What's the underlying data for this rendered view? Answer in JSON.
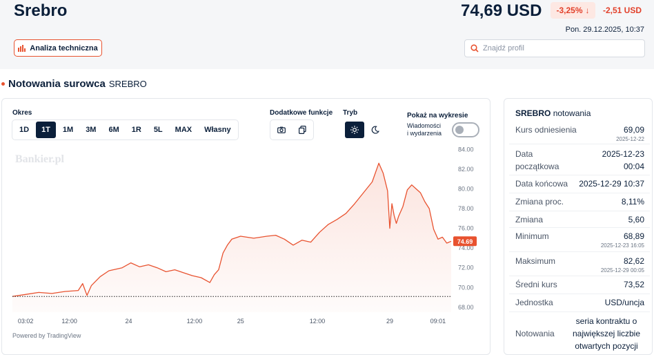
{
  "header": {
    "title": "Srebro",
    "price": "74,69 USD",
    "change_pct": "-3,25%",
    "change_abs": "-2,51 USD",
    "datetime": "Pon. 29.12.2025, 10:37",
    "ta_button": "Analiza techniczna",
    "search_placeholder": "Znajdź profil"
  },
  "section": {
    "title": "Notowania surowca",
    "subtitle": "SREBRO"
  },
  "controls": {
    "period_label": "Okres",
    "periods": [
      "1D",
      "1T",
      "1M",
      "3M",
      "6M",
      "1R",
      "5L",
      "MAX",
      "Własny"
    ],
    "active_period": "1T",
    "extra_label": "Dodatkowe funkcje",
    "mode_label": "Tryb",
    "show_label": "Pokaż na wykresie",
    "news_label_1": "Wiadomości",
    "news_label_2": "i wydarzenia"
  },
  "chart_data": {
    "type": "area",
    "watermark": "Bankier.pl",
    "powered_by": "Powered by TradingView",
    "x_tick_labels": [
      "03:02",
      "12:00",
      "24",
      "12:00",
      "25",
      "12:00",
      "29",
      "09:01"
    ],
    "y_tick_labels": [
      "84.00",
      "82.00",
      "80.00",
      "78.00",
      "76.00",
      "74.00",
      "72.00",
      "70.00",
      "68.00"
    ],
    "ylim": [
      67.5,
      84.3
    ],
    "reference_line": 69.09,
    "last_price_label": "74.69",
    "last_price": 74.69,
    "line_color": "#e8522f",
    "series": [
      {
        "x": [
          0,
          0.03,
          0.06,
          0.09,
          0.12,
          0.15,
          0.16,
          0.17,
          0.18,
          0.2,
          0.22,
          0.25,
          0.27,
          0.29,
          0.31,
          0.33,
          0.35,
          0.37,
          0.39,
          0.41,
          0.43,
          0.45,
          0.46,
          0.47,
          0.48,
          0.49,
          0.5,
          0.52,
          0.55,
          0.58,
          0.6,
          0.62,
          0.64,
          0.66,
          0.68,
          0.69,
          0.7,
          0.72,
          0.74,
          0.76,
          0.78,
          0.8,
          0.82,
          0.835,
          0.845,
          0.855,
          0.86,
          0.865,
          0.87,
          0.875,
          0.88,
          0.89,
          0.9,
          0.91,
          0.92,
          0.93,
          0.94,
          0.95,
          0.96,
          0.97,
          0.98,
          0.99,
          1.0
        ],
        "y": [
          69.1,
          69.3,
          69.5,
          69.4,
          69.6,
          69.7,
          70.4,
          69.2,
          70.2,
          71.1,
          71.7,
          72.0,
          72.5,
          72.1,
          72.3,
          72.0,
          71.6,
          71.8,
          71.5,
          71.2,
          71.0,
          70.5,
          71.3,
          71.8,
          73.5,
          74.3,
          74.9,
          75.2,
          75.0,
          75.2,
          75.3,
          74.9,
          74.3,
          74.8,
          74.6,
          75.1,
          75.6,
          76.4,
          76.9,
          77.5,
          78.5,
          79.6,
          80.7,
          82.6,
          81.6,
          79.8,
          76.0,
          78.5,
          77.3,
          76.5,
          77.2,
          78.2,
          79.9,
          80.4,
          80.0,
          79.6,
          78.7,
          78.0,
          75.9,
          74.9,
          75.1,
          74.5,
          74.69
        ]
      }
    ]
  },
  "stats": {
    "title_bold": "SREBRO",
    "title_rest": "notowania",
    "rows": [
      {
        "label": "Kurs odniesienia",
        "value": "69,09",
        "sub": "2025-12-22"
      },
      {
        "label": "Data",
        "label2": "początkowa",
        "value": "2025-12-23",
        "value2": "00:04"
      },
      {
        "label": "Data końcowa",
        "value": "2025-12-29 10:37"
      },
      {
        "label": "Zmiana proc.",
        "value": "8,11%"
      },
      {
        "label": "Zmiana",
        "value": "5,60"
      },
      {
        "label": "Minimum",
        "value": "68,89",
        "sub": "2025-12-23 16:05"
      },
      {
        "label": "Maksimum",
        "value": "82,62",
        "sub": "2025-12-29 00:05"
      },
      {
        "label": "Średni kurs",
        "value": "73,52"
      },
      {
        "label": "Jednostka",
        "value": "USD/uncja"
      },
      {
        "label": "Notowania",
        "value": "seria kontraktu o",
        "value2": "największej liczbie",
        "value3": "otwartych pozycji"
      }
    ]
  }
}
